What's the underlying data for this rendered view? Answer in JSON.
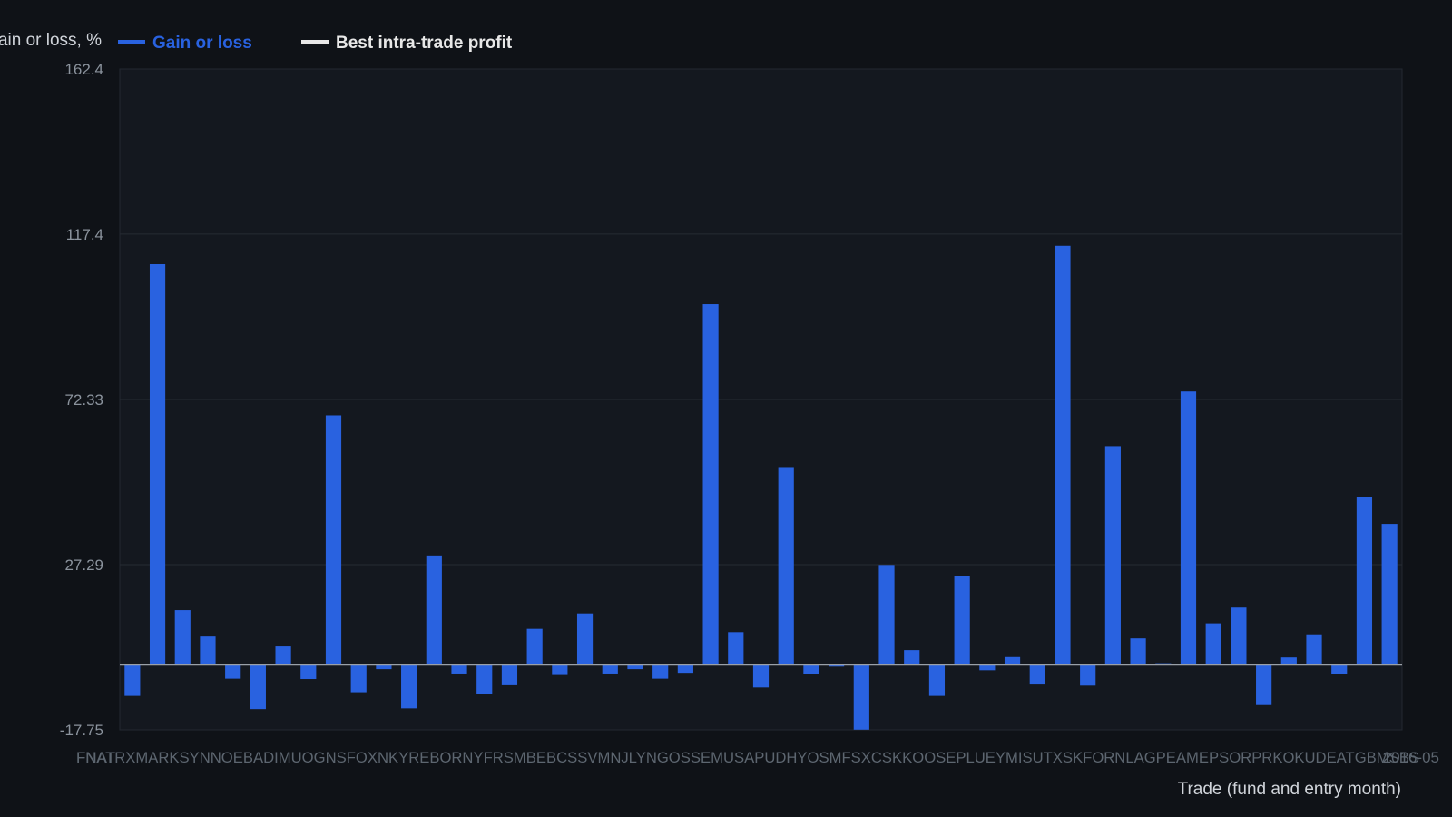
{
  "chart_data": {
    "type": "bar",
    "ylabel": "Gain or loss, %",
    "xlabel": "Trade (fund and entry month)",
    "ylim": [
      -17.75,
      162.4
    ],
    "yticks": [
      -17.75,
      27.29,
      72.33,
      117.4,
      162.4
    ],
    "grid": true,
    "legend_position": "top-left",
    "series": [
      {
        "name": "Gain or loss",
        "color": "#2962e0",
        "values": [
          -8.5,
          109.2,
          14.9,
          7.7,
          -3.8,
          -12.1,
          5.0,
          -3.9,
          68.0,
          -7.5,
          -1.2,
          -11.9,
          29.8,
          -2.4,
          -8.0,
          -5.6,
          9.8,
          -2.8,
          14.0,
          -2.4,
          -1.2,
          -3.8,
          -2.2,
          98.3,
          8.9,
          -6.2,
          53.9,
          -2.5,
          -0.5,
          -17.7,
          27.2,
          4.0,
          -8.5,
          24.2,
          -1.5,
          2.1,
          -5.4,
          114.2,
          -5.7,
          59.6,
          7.2,
          0.4,
          74.5,
          11.3,
          15.6,
          -11.0,
          2.0,
          8.3,
          -2.5,
          45.6,
          38.4
        ]
      },
      {
        "name": "Best intra-trade profit",
        "color": "#e8e8e8",
        "values": []
      }
    ],
    "categories_first": "FNAT",
    "categories_last": "2016-05",
    "categories_overlapping_text": "FNATRXMARKSYNNOEBADIMUOGNSFOXNKYREBORNYFRSMBEBCSSVMNJLYNGOSSEMUSAPUDHYOSMFSXCSKKOOSEPLUEYMISUTXSKFORNLAGPEAMEPSORPRKOKUDEATGBMSBS"
  }
}
